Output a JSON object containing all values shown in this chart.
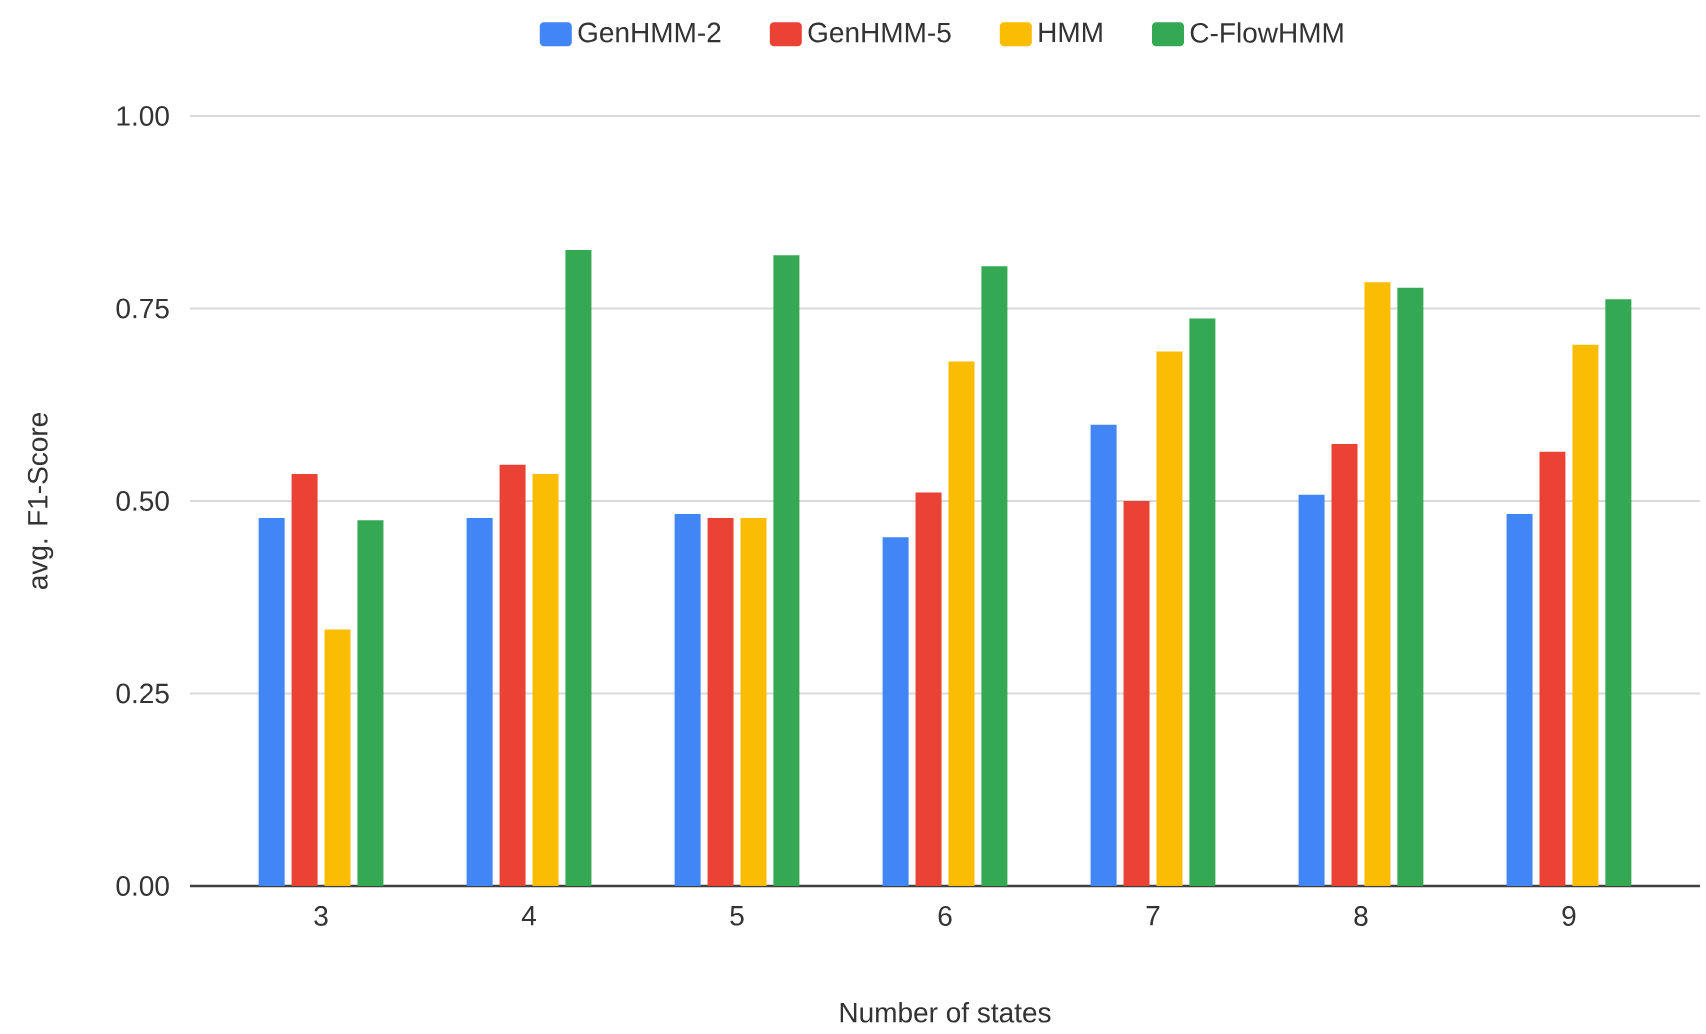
{
  "chart_data": {
    "type": "bar",
    "xlabel": "Number of states",
    "ylabel": "avg. F1-Score",
    "categories": [
      "3",
      "4",
      "5",
      "6",
      "7",
      "8",
      "9"
    ],
    "series": [
      {
        "name": "GenHMM-2",
        "color": "#4285f4",
        "values": [
          0.478,
          0.478,
          0.483,
          0.453,
          0.599,
          0.508,
          0.483
        ]
      },
      {
        "name": "GenHMM-5",
        "color": "#ea4335",
        "values": [
          0.535,
          0.547,
          0.478,
          0.511,
          0.5,
          0.574,
          0.564
        ]
      },
      {
        "name": "HMM",
        "color": "#fbbc04",
        "values": [
          0.333,
          0.535,
          0.478,
          0.681,
          0.694,
          0.784,
          0.703
        ]
      },
      {
        "name": "C-FlowHMM",
        "color": "#34a853",
        "values": [
          0.475,
          0.826,
          0.819,
          0.805,
          0.737,
          0.777,
          0.762
        ]
      }
    ],
    "ylim": [
      0,
      1
    ],
    "yticks": [
      {
        "value": 0,
        "label": "0.00"
      },
      {
        "value": 0.25,
        "label": "0.25"
      },
      {
        "value": 0.5,
        "label": "0.50"
      },
      {
        "value": 0.75,
        "label": "0.75"
      },
      {
        "value": 1,
        "label": "1.00"
      }
    ],
    "grid": "y",
    "legend": "top"
  }
}
